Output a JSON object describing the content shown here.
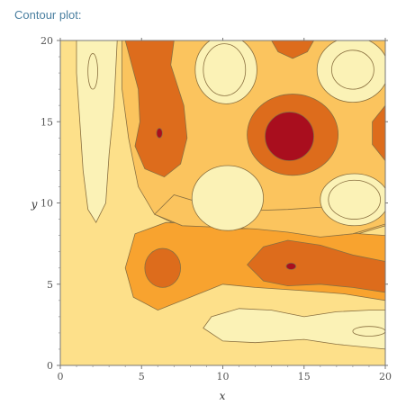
{
  "caption": "Contour plot:",
  "chart_data": {
    "type": "contour",
    "xlabel": "x",
    "ylabel": "y",
    "xlim": [
      0,
      20
    ],
    "ylim": [
      0,
      20
    ],
    "x_ticks": [
      0,
      5,
      10,
      15,
      20
    ],
    "y_ticks": [
      0,
      5,
      10,
      15,
      20
    ],
    "frame": true,
    "grid": false,
    "colors": [
      "#fde08a",
      "#fbc45e",
      "#f8a32f",
      "#dd6c1c",
      "#a90e1e"
    ],
    "level_colors": [
      "#fbf2b6",
      "#fde08a",
      "#fbc45e",
      "#f8a32f",
      "#dd6c1c",
      "#a90e1e"
    ],
    "contour_line_color": "#8a7040"
  }
}
